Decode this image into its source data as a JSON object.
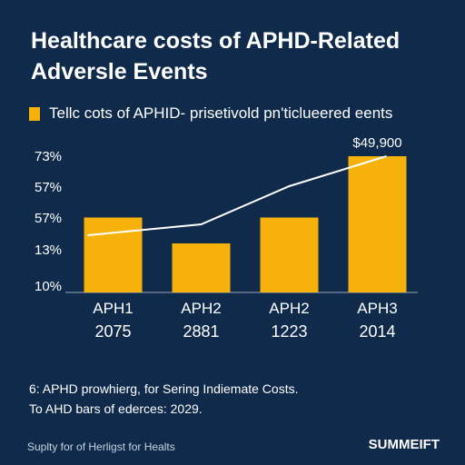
{
  "header": {
    "title_line1": "Healthcare costs of APHD-Related",
    "title_line2": "Adversle Events"
  },
  "legend": {
    "label": "Tellc cots of APHID- prisetivold pn'ticlueered eents"
  },
  "colors": {
    "background": "#0f2a4a",
    "bar": "#f6b20a",
    "line": "#ffffff",
    "axis": "#9aa8b8"
  },
  "chart_data": {
    "type": "bar",
    "categories": [
      "APH1",
      "APH2",
      "APH2",
      "APH3"
    ],
    "category_sublabels": [
      "2075",
      "2881",
      "1223",
      "2014"
    ],
    "ytick_labels": [
      "73%",
      "57%",
      "57%",
      "13%",
      "10%"
    ],
    "values": [
      55,
      36,
      55,
      100
    ],
    "ylim": [
      0,
      100
    ],
    "trend_line": [
      42,
      50,
      78,
      100
    ],
    "annotation": "$49,900",
    "legend": "Tellc cots of APHID- prisetivold pn'ticlueered eents"
  },
  "footnote": {
    "line1": "6: APHD prowhierg, for Sering Indiemate Costs.",
    "line2": "To AHD bars of ederces: 2029."
  },
  "footer": {
    "left": "Suplty for of Herligst for Healts",
    "right": "SUMMEIFT"
  }
}
